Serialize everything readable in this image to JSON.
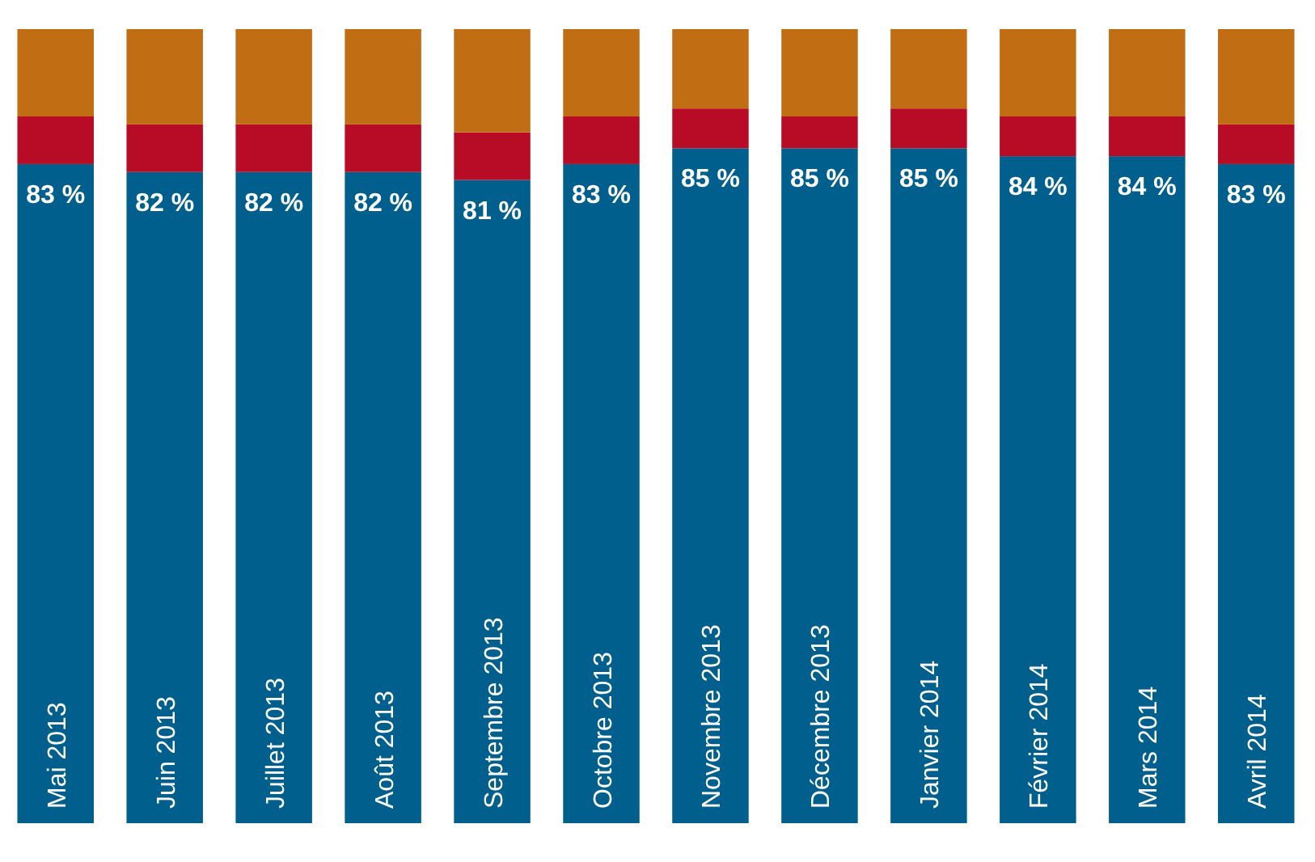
{
  "chart_data": {
    "type": "bar",
    "stacked": true,
    "ylim": [
      0,
      100
    ],
    "tick_labels": "x",
    "categories": [
      "Mai 2013",
      "Juin 2013",
      "Juillet 2013",
      "Août 2013",
      "Septembre 2013",
      "Octobre 2013",
      "Novembre 2013",
      "Décembre 2013",
      "Janvier 2014",
      "Février 2014",
      "Mars 2014",
      "Avril 2014"
    ],
    "series": [
      {
        "color": "#005f8c",
        "values": [
          83,
          82,
          82,
          82,
          81,
          83,
          85,
          85,
          85,
          84,
          84,
          83
        ],
        "value_labels": [
          "83 %",
          "82 %",
          "82 %",
          "82 %",
          "81 %",
          "83 %",
          "85 %",
          "85 %",
          "85 %",
          "84 %",
          "84 %",
          "83 %"
        ]
      },
      {
        "color": "#b80c26",
        "values": [
          6,
          6,
          6,
          6,
          6,
          6,
          5,
          4,
          5,
          5,
          5,
          5
        ]
      },
      {
        "color": "#c06d14",
        "values": [
          11,
          12,
          12,
          12,
          13,
          11,
          10,
          11,
          10,
          11,
          11,
          12
        ]
      }
    ]
  }
}
